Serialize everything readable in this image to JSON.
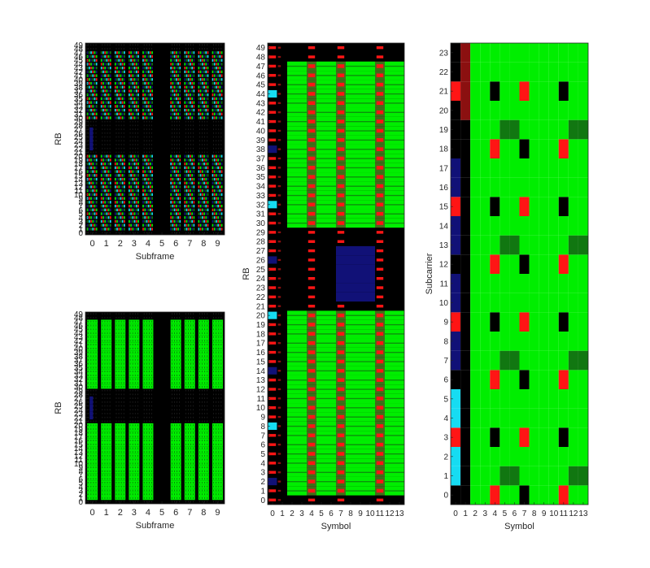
{
  "colors": {
    "background": "#000000",
    "pdsch": "#00ee00",
    "pdsch_dark": "#117711",
    "reference_signal": "#ff1515",
    "control": "#8b1010",
    "pbch": "#111177",
    "sync": "#16dcf2"
  },
  "chart_data": [
    {
      "type": "heatmap",
      "title": "",
      "xlabel": "Subframe",
      "ylabel": "RB",
      "x_ticks": [
        "0",
        "1",
        "2",
        "3",
        "4",
        "5",
        "6",
        "7",
        "8",
        "9"
      ],
      "y_ticks": [
        "0",
        "1",
        "2",
        "3",
        "4",
        "5",
        "6",
        "7",
        "8",
        "9",
        "10",
        "11",
        "12",
        "13",
        "14",
        "15",
        "16",
        "17",
        "18",
        "19",
        "20",
        "21",
        "22",
        "23",
        "24",
        "25",
        "26",
        "27",
        "28",
        "29",
        "30",
        "31",
        "32",
        "33",
        "34",
        "35",
        "36",
        "37",
        "38",
        "39",
        "40",
        "41",
        "42",
        "43",
        "44",
        "45",
        "46",
        "47",
        "48",
        "49"
      ],
      "xlim": [
        0,
        9
      ],
      "ylim": [
        0,
        49
      ],
      "allocated_rb_ranges": [
        [
          1,
          20
        ],
        [
          30,
          47
        ]
      ],
      "empty_subframes": [
        5
      ],
      "pattern": "mixed reference-signal colors"
    },
    {
      "type": "heatmap",
      "title": "",
      "xlabel": "Subframe",
      "ylabel": "RB",
      "x_ticks": [
        "0",
        "1",
        "2",
        "3",
        "4",
        "5",
        "6",
        "7",
        "8",
        "9"
      ],
      "y_ticks": [
        "0",
        "1",
        "2",
        "3",
        "4",
        "5",
        "6",
        "7",
        "8",
        "9",
        "10",
        "11",
        "12",
        "13",
        "14",
        "15",
        "16",
        "17",
        "18",
        "19",
        "20",
        "21",
        "22",
        "23",
        "24",
        "25",
        "26",
        "27",
        "28",
        "29",
        "30",
        "31",
        "32",
        "33",
        "34",
        "35",
        "36",
        "37",
        "38",
        "39",
        "40",
        "41",
        "42",
        "43",
        "44",
        "45",
        "46",
        "47",
        "48",
        "49"
      ],
      "xlim": [
        0,
        9
      ],
      "ylim": [
        0,
        49
      ],
      "allocated_rb_ranges": [
        [
          1,
          20
        ],
        [
          30,
          47
        ]
      ],
      "empty_subframes": [
        5
      ],
      "pattern": "PDSCH allocation"
    },
    {
      "type": "heatmap",
      "title": "",
      "xlabel": "Symbol",
      "ylabel": "RB",
      "x_ticks": [
        "0",
        "1",
        "2",
        "3",
        "4",
        "5",
        "6",
        "7",
        "8",
        "9",
        "10",
        "11",
        "12",
        "13"
      ],
      "y_ticks": [
        "0",
        "1",
        "2",
        "3",
        "4",
        "5",
        "6",
        "7",
        "8",
        "9",
        "10",
        "11",
        "12",
        "13",
        "14",
        "15",
        "16",
        "17",
        "18",
        "19",
        "20",
        "21",
        "22",
        "23",
        "24",
        "25",
        "26",
        "27",
        "28",
        "29",
        "30",
        "31",
        "32",
        "33",
        "34",
        "35",
        "36",
        "37",
        "38",
        "39",
        "40",
        "41",
        "42",
        "43",
        "44",
        "45",
        "46",
        "47",
        "48",
        "49"
      ],
      "xlim": [
        0,
        13
      ],
      "ylim": [
        0,
        49
      ],
      "allocated_rb_ranges": [
        [
          0,
          20
        ],
        [
          30,
          47
        ]
      ],
      "pbch_symbols": [
        7,
        10
      ],
      "pbch_rb_range": [
        22,
        27
      ],
      "reference_signal_symbols": [
        0,
        4,
        7,
        11
      ]
    },
    {
      "type": "heatmap",
      "title": "",
      "xlabel": "Symbol",
      "ylabel": "Subcarrier",
      "x_ticks": [
        "0",
        "1",
        "2",
        "3",
        "4",
        "5",
        "6",
        "7",
        "8",
        "9",
        "10",
        "11",
        "12",
        "13"
      ],
      "y_ticks": [
        "0",
        "1",
        "2",
        "3",
        "4",
        "5",
        "6",
        "7",
        "8",
        "9",
        "10",
        "11",
        "12",
        "13",
        "14",
        "15",
        "16",
        "17",
        "18",
        "19",
        "20",
        "21",
        "22",
        "23"
      ],
      "xlim": [
        0,
        13
      ],
      "ylim": [
        0,
        23
      ],
      "control_symbol": 1,
      "reference_signal_symbols": [
        0,
        4,
        7,
        11
      ],
      "reference_signal_subcarrier_groups": [
        [
          3,
          9,
          15,
          21
        ],
        [
          0,
          6,
          12,
          18
        ]
      ],
      "dark_green_subcarriers": [
        1,
        7,
        13,
        19
      ],
      "sync_subcarriers_symbol0": [
        1,
        2,
        4,
        5
      ],
      "pbch_subcarriers_symbol0": [
        7,
        8,
        10,
        11,
        13,
        14,
        16,
        17
      ]
    }
  ]
}
